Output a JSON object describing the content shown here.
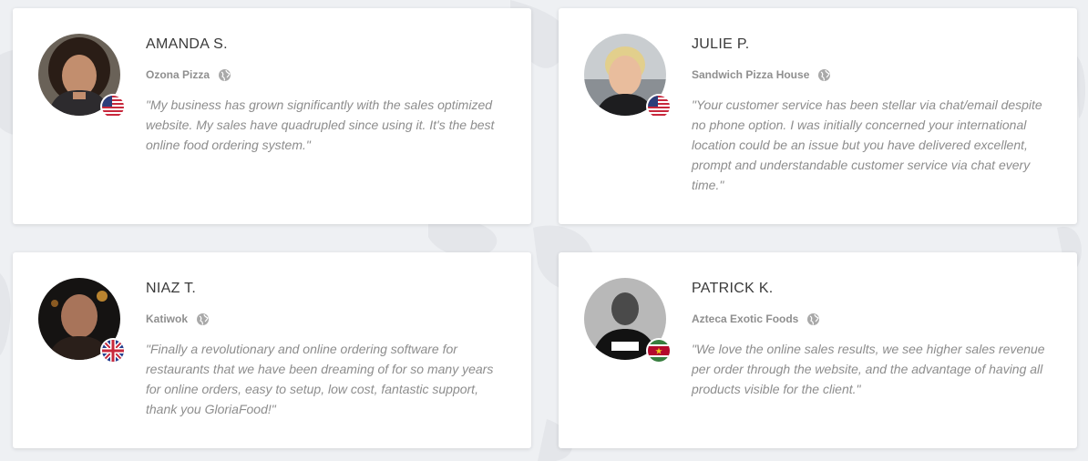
{
  "testimonials": [
    {
      "name": "AMANDA S.",
      "business": "Ozona Pizza",
      "flag": "us-flag",
      "quote": "\"My business has grown significantly with the sales optimized website. My sales have quadrupled since using it. It's the best online food ordering system.\""
    },
    {
      "name": "JULIE P.",
      "business": "Sandwich Pizza House",
      "flag": "us-flag",
      "quote": "\"Your customer service has been stellar via chat/email despite no phone option. I was initially concerned your international location could be an issue but you have delivered excellent, prompt and understandable customer service via chat every time.\""
    },
    {
      "name": "NIAZ T.",
      "business": "Katiwok",
      "flag": "uk-flag",
      "quote": "\"Finally a revolutionary and online ordering software for restaurants that we have been dreaming of for so many years for online orders, easy to setup, low cost, fantastic support, thank you GloriaFood!\""
    },
    {
      "name": "PATRICK K.",
      "business": "Azteca Exotic Foods",
      "flag": "suriname-flag",
      "quote": "\"We love the online sales results, we see higher sales revenue per order through the website, and the advantage of having all products visible for the client.\""
    }
  ],
  "colors": {
    "background": "#eef0f3",
    "card": "#ffffff",
    "name": "#3a3a3a",
    "business": "#8f8f8f",
    "quote": "#8d8d8d"
  }
}
